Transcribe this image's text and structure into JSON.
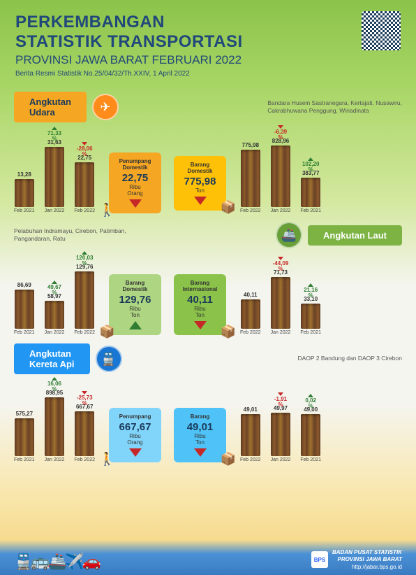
{
  "header": {
    "title_line1": "PERKEMBANGAN",
    "title_line2": "STATISTIK TRANSPORTASI",
    "subtitle": "PROVINSI JAWA BARAT FEBRUARI 2022",
    "release": "Berita Resmi Statistik No.25/04/32/Th.XXIV, 1 April 2022"
  },
  "sections": {
    "udara": {
      "label": "Angkutan\nUdara",
      "icon": "✈",
      "caption": "Bandara Husein Sastranegara, Kertajati, Nusawiru,\nCakrabhuwana Penggung, Wiriadinata",
      "bars_left": [
        {
          "label": "Feb 2021",
          "value": "13,28",
          "h": 40
        },
        {
          "label": "Jan 2022",
          "value": "31,63",
          "h": 86,
          "delta": {
            "val": "71,33",
            "pct": "%",
            "dir": "up"
          }
        },
        {
          "label": "Feb 2022",
          "value": "22,75",
          "h": 64,
          "delta": {
            "val": "-28,06",
            "pct": "%",
            "dir": "down"
          }
        }
      ],
      "bars_right": [
        {
          "label": "Feb 2022",
          "value": "775,98",
          "h": 82
        },
        {
          "label": "Jan 2022",
          "value": "828,96",
          "h": 88,
          "delta": {
            "val": "-6,39",
            "pct": "%",
            "dir": "down"
          }
        },
        {
          "label": "Feb 2021",
          "value": "383,77",
          "h": 42,
          "delta": {
            "val": "102,20",
            "pct": "%",
            "dir": "up"
          }
        }
      ],
      "metrics": [
        {
          "title": "Penumpang\nDomestik",
          "value": "22,75",
          "unit": "Ribu\nOrang",
          "color": "orange",
          "arrow": "down",
          "icon": "🚶",
          "iconpos": "left"
        },
        {
          "title": "Barang\nDomestik",
          "value": "775,98",
          "unit": "Ton",
          "color": "yellow",
          "arrow": "down",
          "icon": "📦",
          "iconpos": "right"
        }
      ]
    },
    "laut": {
      "label": "Angkutan Laut",
      "icon": "🚢",
      "caption": "Pelabuhan Indramayu, Cirebon, Patimban,\nPangandaran, Ratu",
      "bars_left": [
        {
          "label": "Feb 2021",
          "value": "86,69",
          "h": 56
        },
        {
          "label": "Jan 2022",
          "value": "58,97",
          "h": 40,
          "delta": {
            "val": "49,67",
            "pct": "%",
            "dir": "up"
          }
        },
        {
          "label": "Feb 2022",
          "value": "129,76",
          "h": 82,
          "delta": {
            "val": "120,03",
            "pct": "%",
            "dir": "up"
          }
        }
      ],
      "bars_right": [
        {
          "label": "Feb 2022",
          "value": "40,11",
          "h": 42
        },
        {
          "label": "Jan 2022",
          "value": "71,73",
          "h": 74,
          "delta": {
            "val": "-44,09",
            "pct": "%",
            "dir": "down"
          }
        },
        {
          "label": "Feb 2021",
          "value": "33,10",
          "h": 36,
          "delta": {
            "val": "21,16",
            "pct": "%",
            "dir": "up"
          }
        }
      ],
      "metrics": [
        {
          "title": "Barang\nDomestik",
          "value": "129,76",
          "unit": "Ribu\nTon",
          "color": "lightgreen",
          "arrow": "up",
          "icon": "📦",
          "iconpos": "left"
        },
        {
          "title": "Barang\nInternasional",
          "value": "40,11",
          "unit": "Ribu\nTon",
          "color": "green",
          "arrow": "down",
          "icon": "📦",
          "iconpos": "right"
        }
      ]
    },
    "kereta": {
      "label": "Angkutan\nKereta Api",
      "icon": "🚆",
      "caption": "DAOP 2 Bandung dan DAOP 3 Cirebon",
      "bars_left": [
        {
          "label": "Feb 2021",
          "value": "575,27",
          "h": 54
        },
        {
          "label": "Jan 2022",
          "value": "898,95",
          "h": 84,
          "delta": {
            "val": "16,06",
            "pct": "%",
            "dir": "up"
          }
        },
        {
          "label": "Feb 2022",
          "value": "667,67",
          "h": 64,
          "delta": {
            "val": "-25,73",
            "pct": "%",
            "dir": "down"
          }
        }
      ],
      "bars_right": [
        {
          "label": "Feb 2022",
          "value": "49,01",
          "h": 60
        },
        {
          "label": "Jan 2022",
          "value": "49,97",
          "h": 62,
          "delta": {
            "val": "-1,91",
            "pct": "%",
            "dir": "down"
          }
        },
        {
          "label": "Feb 2021",
          "value": "49,00",
          "h": 60,
          "delta": {
            "val": "0,02",
            "pct": "%",
            "dir": "up"
          }
        }
      ],
      "metrics": [
        {
          "title": "Penumpang",
          "value": "667,67",
          "unit": "Ribu\nOrang",
          "color": "lightblue",
          "arrow": "down",
          "icon": "🚶",
          "iconpos": "left"
        },
        {
          "title": "Barang",
          "value": "49,01",
          "unit": "Ribu\nTon",
          "color": "blue",
          "arrow": "down",
          "icon": "📦",
          "iconpos": "right"
        }
      ]
    }
  },
  "footer": {
    "org1": "BADAN PUSAT STATISTIK",
    "org2": "PROVINSI JAWA BARAT",
    "url": "http://jabar.bps.go.id",
    "logo": "BPS"
  }
}
